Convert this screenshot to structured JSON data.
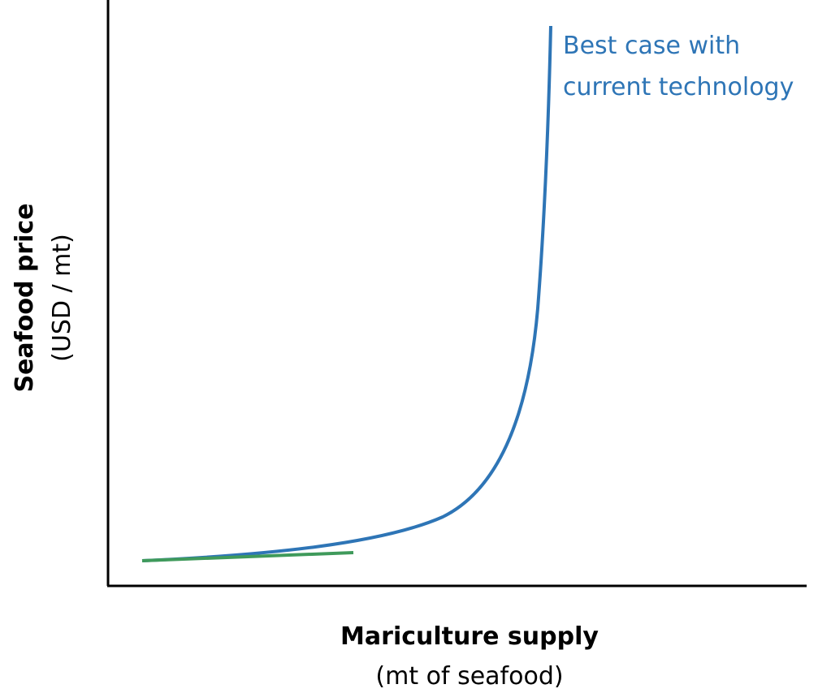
{
  "annotation": {
    "lines": [
      "Best case with",
      "current technology"
    ]
  },
  "y_axis": {
    "title": "Seafood price",
    "unit": "(USD / mt)"
  },
  "x_axis": {
    "title": "Mariculture supply",
    "unit": "(mt of seafood)"
  }
}
